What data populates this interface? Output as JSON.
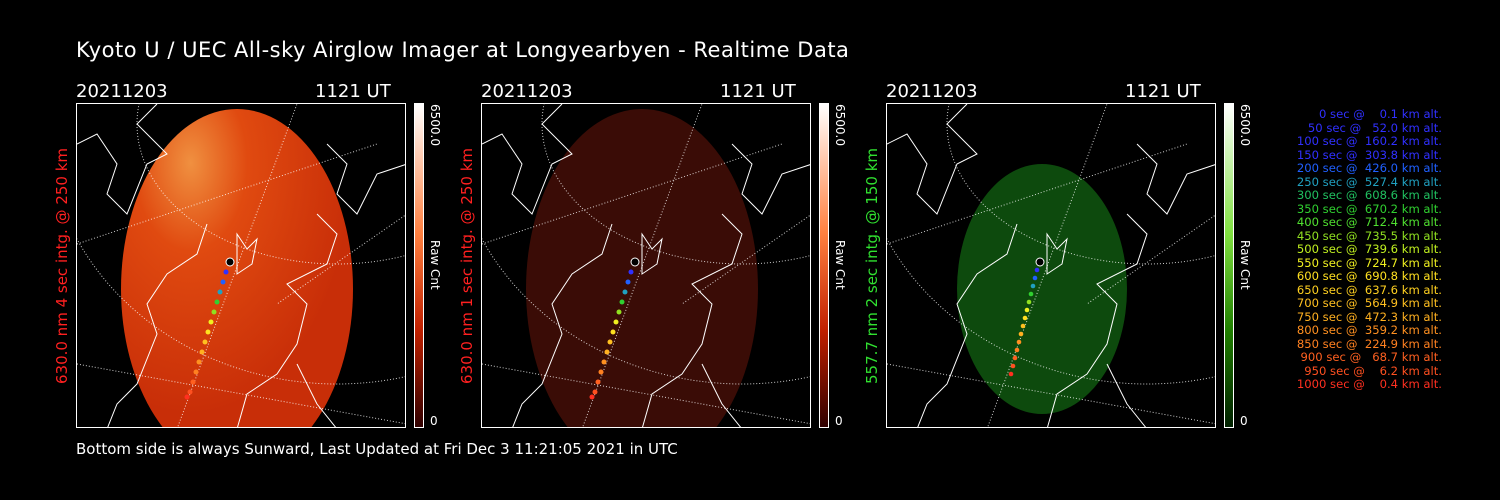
{
  "title": "Kyoto U / UEC All-sky Airglow Imager at Longyearbyen - Realtime Data",
  "footer": "Bottom side is always Sunward, Last Updated at Fri Dec  3 11:21:05 2021 in UTC",
  "panels": [
    {
      "date": "20211203",
      "time": "1121 UT",
      "ylabel": "630.0 nm 4 sec intg. @ 250 km",
      "ylabel_color": "#ff2020",
      "cbar_max": "6500.0",
      "cbar_min": "0",
      "cbar_label": "Raw Cnt",
      "tint": "red",
      "brightness": "high"
    },
    {
      "date": "20211203",
      "time": "1121 UT",
      "ylabel": "630.0 nm 1 sec intg. @ 250 km",
      "ylabel_color": "#ff2020",
      "cbar_max": "6500.0",
      "cbar_min": "0",
      "cbar_label": "Raw Cnt",
      "tint": "red",
      "brightness": "low"
    },
    {
      "date": "20211203",
      "time": "1121 UT",
      "ylabel": "557.7 nm 2 sec intg. @ 150 km",
      "ylabel_color": "#30e030",
      "cbar_max": "6500.0",
      "cbar_min": "0",
      "cbar_label": "Raw Cnt",
      "tint": "green",
      "brightness": "low"
    }
  ],
  "legend": [
    {
      "text": "   0 sec @    0.1 km alt.",
      "color": "#3030ff"
    },
    {
      "text": "  50 sec @   52.0 km alt.",
      "color": "#3030ff"
    },
    {
      "text": " 100 sec @  160.2 km alt.",
      "color": "#3030ff"
    },
    {
      "text": " 150 sec @  303.8 km alt.",
      "color": "#3030ff"
    },
    {
      "text": " 200 sec @  426.0 km alt.",
      "color": "#2060ff"
    },
    {
      "text": " 250 sec @  527.4 km alt.",
      "color": "#20a0c0"
    },
    {
      "text": " 300 sec @  608.6 km alt.",
      "color": "#20c060"
    },
    {
      "text": " 350 sec @  670.2 km alt.",
      "color": "#30d030"
    },
    {
      "text": " 400 sec @  712.4 km alt.",
      "color": "#50e030"
    },
    {
      "text": " 450 sec @  735.5 km alt.",
      "color": "#90e020"
    },
    {
      "text": " 500 sec @  739.6 km alt.",
      "color": "#c0f020"
    },
    {
      "text": " 550 sec @  724.7 km alt.",
      "color": "#f0f020"
    },
    {
      "text": " 600 sec @  690.8 km alt.",
      "color": "#ffe020"
    },
    {
      "text": " 650 sec @  637.6 km alt.",
      "color": "#ffd020"
    },
    {
      "text": " 700 sec @  564.9 km alt.",
      "color": "#ffc020"
    },
    {
      "text": " 750 sec @  472.3 km alt.",
      "color": "#ffb020"
    },
    {
      "text": " 800 sec @  359.2 km alt.",
      "color": "#ff9020"
    },
    {
      "text": " 850 sec @  224.9 km alt.",
      "color": "#ff8020"
    },
    {
      "text": " 900 sec @   68.7 km alt.",
      "color": "#ff6020"
    },
    {
      "text": " 950 sec @    6.2 km alt.",
      "color": "#ff5020"
    },
    {
      "text": "1000 sec @    0.4 km alt.",
      "color": "#ff3020"
    }
  ]
}
